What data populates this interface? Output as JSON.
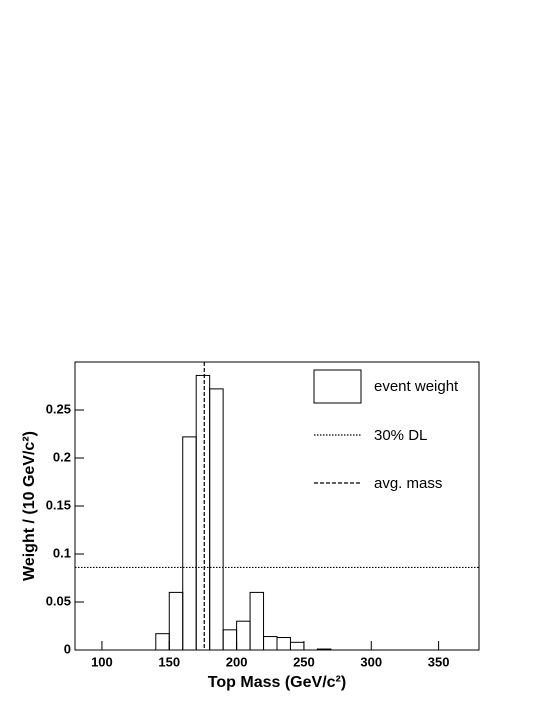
{
  "chart_data": {
    "type": "histogram",
    "xlabel": "Top Mass (GeV/c²)",
    "ylabel": "Weight / (10 GeV/c²)",
    "bins": [
      80,
      90,
      100,
      110,
      120,
      130,
      140,
      150,
      160,
      170,
      180,
      190,
      200,
      210,
      220,
      230,
      240,
      250,
      260,
      270,
      280,
      290,
      300,
      310,
      320,
      330,
      340,
      350,
      360,
      370,
      380
    ],
    "series": [
      {
        "name": "event weight",
        "color": "#000000",
        "values": [
          0,
          0,
          0,
          0,
          0,
          0,
          0.017,
          0.06,
          0.222,
          0.286,
          0.272,
          0.021,
          0.03,
          0.06,
          0.014,
          0.013,
          0.008,
          0,
          0.001,
          0,
          0,
          0,
          0,
          0,
          0,
          0,
          0,
          0,
          0,
          0
        ]
      }
    ],
    "reference_lines": [
      {
        "name": "30% DL",
        "axis": "y",
        "value": 0.086,
        "style": "dotted"
      },
      {
        "name": "avg. mass",
        "axis": "x",
        "value": 176,
        "style": "dashed"
      }
    ],
    "xlim": [
      80,
      380
    ],
    "xticks": [
      100,
      150,
      200,
      250,
      300,
      350
    ],
    "ylim": [
      0,
      0.3
    ],
    "yticks": [
      0,
      0.05,
      0.1,
      0.15,
      0.2,
      0.25
    ],
    "grid": false,
    "legend": "upper right"
  }
}
